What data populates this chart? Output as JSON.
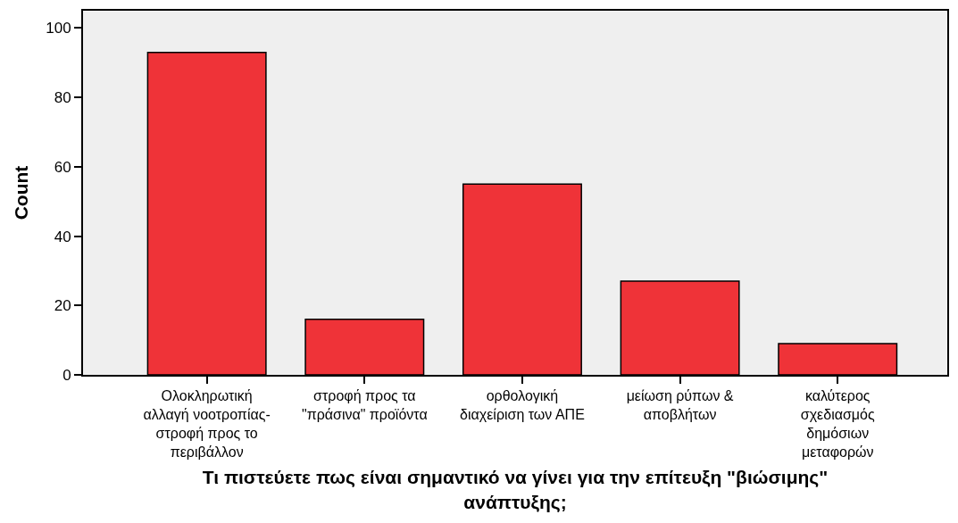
{
  "chart_data": {
    "type": "bar",
    "xlabel": "Τι πιστεύετε πως είναι σημαντικό να γίνει για την επίτευξη \"βιώσιμης\"\nανάπτυξης;",
    "ylabel": "Count",
    "categories": [
      "Ολοκληρωτική\nαλλαγή νοοτροπίας-\nστροφή προς το\nπεριβάλλον",
      "στροφή προς τα\n\"πράσινα\" προϊόντα",
      "ορθολογική\nδιαχείριση των ΑΠΕ",
      "μείωση ρύπων &\nαποβλήτων",
      "καλύτερος\nσχεδιασμός\nδημόσιων\nμεταφορών"
    ],
    "values": [
      93,
      16,
      55,
      27,
      9
    ],
    "color": "#ef3338",
    "ylim": [
      0,
      105
    ],
    "yticks": [
      0,
      20,
      40,
      60,
      80,
      100
    ],
    "grid": false
  }
}
